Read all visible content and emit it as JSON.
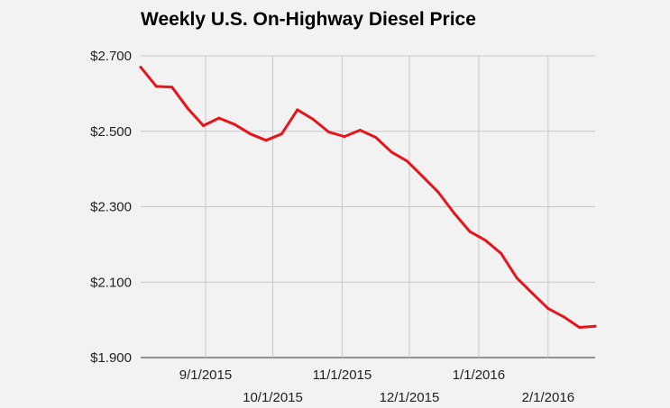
{
  "chart_data": {
    "type": "line",
    "title": "Weekly U.S. On-Highway Diesel Price",
    "xlabel": "",
    "ylabel": "",
    "ylim": [
      1.9,
      2.7
    ],
    "y_ticks": [
      {
        "value": 1.9,
        "label": "$1.900"
      },
      {
        "value": 2.1,
        "label": "$2.100"
      },
      {
        "value": 2.3,
        "label": "$2.300"
      },
      {
        "value": 2.5,
        "label": "$2.500"
      },
      {
        "value": 2.7,
        "label": "$2.700"
      }
    ],
    "x_ticks": [
      {
        "date": "2015-09-01",
        "label": "9/1/2015",
        "row": 0
      },
      {
        "date": "2015-10-01",
        "label": "10/1/2015",
        "row": 1
      },
      {
        "date": "2015-11-01",
        "label": "11/1/2015",
        "row": 0
      },
      {
        "date": "2015-12-01",
        "label": "12/1/2015",
        "row": 1
      },
      {
        "date": "2016-01-01",
        "label": "1/1/2016",
        "row": 0
      },
      {
        "date": "2016-02-01",
        "label": "2/1/2016",
        "row": 1
      }
    ],
    "x_range": [
      "2015-08-03",
      "2016-02-22"
    ],
    "grid": true,
    "legend": "none",
    "series": [
      {
        "color": "#e8141b",
        "points": [
          {
            "x": "2015-08-03",
            "y": 2.67
          },
          {
            "x": "2015-08-10",
            "y": 2.619
          },
          {
            "x": "2015-08-17",
            "y": 2.617
          },
          {
            "x": "2015-08-24",
            "y": 2.561
          },
          {
            "x": "2015-08-31",
            "y": 2.515
          },
          {
            "x": "2015-09-07",
            "y": 2.535
          },
          {
            "x": "2015-09-14",
            "y": 2.518
          },
          {
            "x": "2015-09-21",
            "y": 2.493
          },
          {
            "x": "2015-09-28",
            "y": 2.476
          },
          {
            "x": "2015-10-05",
            "y": 2.493
          },
          {
            "x": "2015-10-12",
            "y": 2.557
          },
          {
            "x": "2015-10-19",
            "y": 2.532
          },
          {
            "x": "2015-10-26",
            "y": 2.498
          },
          {
            "x": "2015-11-02",
            "y": 2.486
          },
          {
            "x": "2015-11-09",
            "y": 2.503
          },
          {
            "x": "2015-11-16",
            "y": 2.484
          },
          {
            "x": "2015-11-23",
            "y": 2.445
          },
          {
            "x": "2015-11-30",
            "y": 2.421
          },
          {
            "x": "2015-12-07",
            "y": 2.38
          },
          {
            "x": "2015-12-14",
            "y": 2.338
          },
          {
            "x": "2015-12-21",
            "y": 2.283
          },
          {
            "x": "2015-12-28",
            "y": 2.234
          },
          {
            "x": "2016-01-04",
            "y": 2.211
          },
          {
            "x": "2016-01-11",
            "y": 2.176
          },
          {
            "x": "2016-01-18",
            "y": 2.111
          },
          {
            "x": "2016-01-25",
            "y": 2.07
          },
          {
            "x": "2016-02-01",
            "y": 2.03
          },
          {
            "x": "2016-02-08",
            "y": 2.008
          },
          {
            "x": "2016-02-15",
            "y": 1.98
          },
          {
            "x": "2016-02-22",
            "y": 1.983
          }
        ]
      }
    ]
  }
}
